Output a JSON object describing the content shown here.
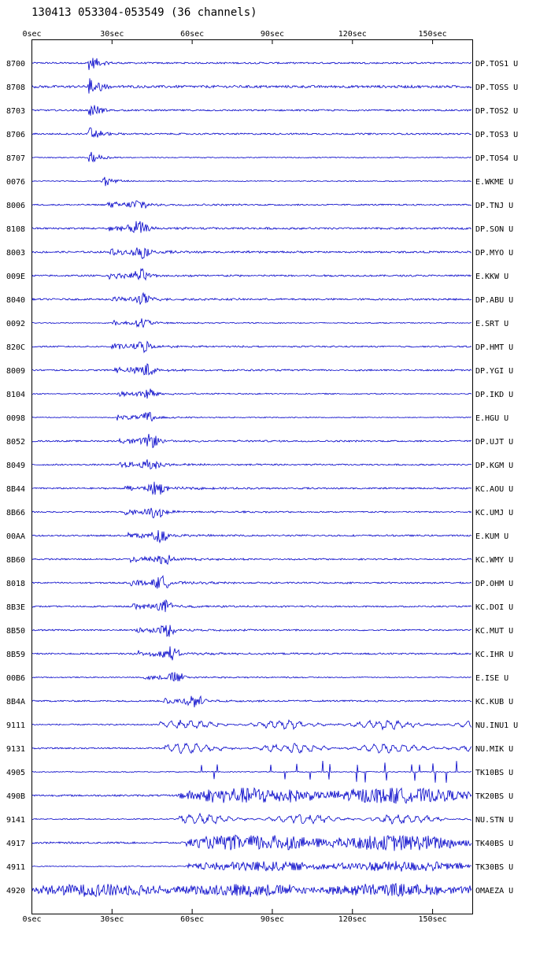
{
  "title": "130413 053304-053549 (36 channels)",
  "chart_data": {
    "type": "line",
    "xlabel": "",
    "ylabel": "",
    "x_ticks": [
      "0sec",
      "30sec",
      "60sec",
      "90sec",
      "120sec",
      "150sec"
    ],
    "x_tick_values": [
      0,
      30,
      60,
      90,
      120,
      150
    ],
    "xlim": [
      0,
      165
    ],
    "trace_color": "#0000c8",
    "channels": [
      {
        "code": "8700",
        "station": "DP.TOS1 U",
        "onset": 21,
        "amp": 0.8,
        "style": "burst",
        "noise": 0.04
      },
      {
        "code": "8708",
        "station": "DP.TOSS U",
        "onset": 21,
        "amp": 1.0,
        "style": "burst",
        "noise": 0.05
      },
      {
        "code": "8703",
        "station": "DP.TOS2 U",
        "onset": 21,
        "amp": 0.8,
        "style": "burst",
        "noise": 0.04
      },
      {
        "code": "8706",
        "station": "DP.TOS3 U",
        "onset": 21,
        "amp": 0.8,
        "style": "burst",
        "noise": 0.04
      },
      {
        "code": "8707",
        "station": "DP.TOS4 U",
        "onset": 21,
        "amp": 0.6,
        "style": "burst",
        "noise": 0.03
      },
      {
        "code": "0076",
        "station": "E.WKME U",
        "onset": 26,
        "amp": 0.6,
        "style": "burst",
        "noise": 0.03
      },
      {
        "code": "8006",
        "station": "DP.TNJ U",
        "onset": 28,
        "amp": 0.55,
        "style": "spread",
        "noise": 0.05
      },
      {
        "code": "8108",
        "station": "DP.SON U",
        "onset": 28,
        "amp": 0.6,
        "style": "spread",
        "noise": 0.06
      },
      {
        "code": "8003",
        "station": "DP.MYO U",
        "onset": 29,
        "amp": 0.6,
        "style": "spread",
        "noise": 0.06
      },
      {
        "code": "009E",
        "station": "E.KKW U",
        "onset": 29,
        "amp": 0.55,
        "style": "spread",
        "noise": 0.06
      },
      {
        "code": "8040",
        "station": "DP.ABU U",
        "onset": 30,
        "amp": 0.5,
        "style": "spread",
        "noise": 0.07
      },
      {
        "code": "0092",
        "station": "E.SRT U",
        "onset": 30,
        "amp": 0.45,
        "style": "spread",
        "noise": 0.04
      },
      {
        "code": "820C",
        "station": "DP.HMT U",
        "onset": 30,
        "amp": 0.55,
        "style": "spread",
        "noise": 0.05
      },
      {
        "code": "8009",
        "station": "DP.YGI U",
        "onset": 31,
        "amp": 0.6,
        "style": "spread",
        "noise": 0.05
      },
      {
        "code": "8104",
        "station": "DP.IKD U",
        "onset": 32,
        "amp": 0.5,
        "style": "spread",
        "noise": 0.04
      },
      {
        "code": "0098",
        "station": "E.HGU U",
        "onset": 32,
        "amp": 0.5,
        "style": "spread",
        "noise": 0.03
      },
      {
        "code": "8052",
        "station": "DP.UJT U",
        "onset": 33,
        "amp": 0.6,
        "style": "spread",
        "noise": 0.05
      },
      {
        "code": "8049",
        "station": "DP.KGM U",
        "onset": 33,
        "amp": 0.55,
        "style": "spread",
        "noise": 0.05
      },
      {
        "code": "8B44",
        "station": "KC.AOU U",
        "onset": 35,
        "amp": 0.6,
        "style": "spread",
        "noise": 0.05
      },
      {
        "code": "8B66",
        "station": "KC.UMJ U",
        "onset": 35,
        "amp": 0.55,
        "style": "spread",
        "noise": 0.05
      },
      {
        "code": "00AA",
        "station": "E.KUM U",
        "onset": 36,
        "amp": 0.6,
        "style": "spread",
        "noise": 0.05
      },
      {
        "code": "8B60",
        "station": "KC.WMY U",
        "onset": 37,
        "amp": 0.6,
        "style": "spread",
        "noise": 0.05
      },
      {
        "code": "8018",
        "station": "DP.OHM U",
        "onset": 37,
        "amp": 0.6,
        "style": "spread",
        "noise": 0.05
      },
      {
        "code": "8B3E",
        "station": "KC.DOI U",
        "onset": 38,
        "amp": 0.55,
        "style": "spread",
        "noise": 0.05
      },
      {
        "code": "8B50",
        "station": "KC.MUT U",
        "onset": 39,
        "amp": 0.55,
        "style": "spread",
        "noise": 0.05
      },
      {
        "code": "8B59",
        "station": "KC.IHR U",
        "onset": 40,
        "amp": 0.6,
        "style": "spread",
        "noise": 0.05
      },
      {
        "code": "00B6",
        "station": "E.ISE U",
        "onset": 42,
        "amp": 0.5,
        "style": "spread",
        "noise": 0.04
      },
      {
        "code": "8B4A",
        "station": "KC.KUB U",
        "onset": 49,
        "amp": 0.6,
        "style": "spread",
        "noise": 0.05
      },
      {
        "code": "9111",
        "station": "NU.INU1 U",
        "onset": 48,
        "amp": 0.5,
        "style": "long",
        "noise": 0.05
      },
      {
        "code": "9131",
        "station": "NU.MIK U",
        "onset": 50,
        "amp": 0.55,
        "style": "long",
        "noise": 0.05
      },
      {
        "code": "4905",
        "station": "TK10BS U",
        "onset": 55,
        "amp": 0.9,
        "style": "spikes",
        "noise": 0.02
      },
      {
        "code": "490B",
        "station": "TK20BS U",
        "onset": 55,
        "amp": 0.7,
        "style": "noisy",
        "noise": 0.05
      },
      {
        "code": "9141",
        "station": "NU.STN U",
        "onset": 55,
        "amp": 0.55,
        "style": "long",
        "noise": 0.04
      },
      {
        "code": "4917",
        "station": "TK40BS U",
        "onset": 58,
        "amp": 0.7,
        "style": "noisy",
        "noise": 0.05
      },
      {
        "code": "4911",
        "station": "TK30BS U",
        "onset": 58,
        "amp": 0.45,
        "style": "noisy",
        "noise": 0.04
      },
      {
        "code": "4920",
        "station": "OMAEZA U",
        "onset": 0,
        "amp": 0.55,
        "style": "noisy",
        "noise": 0.08
      }
    ]
  }
}
